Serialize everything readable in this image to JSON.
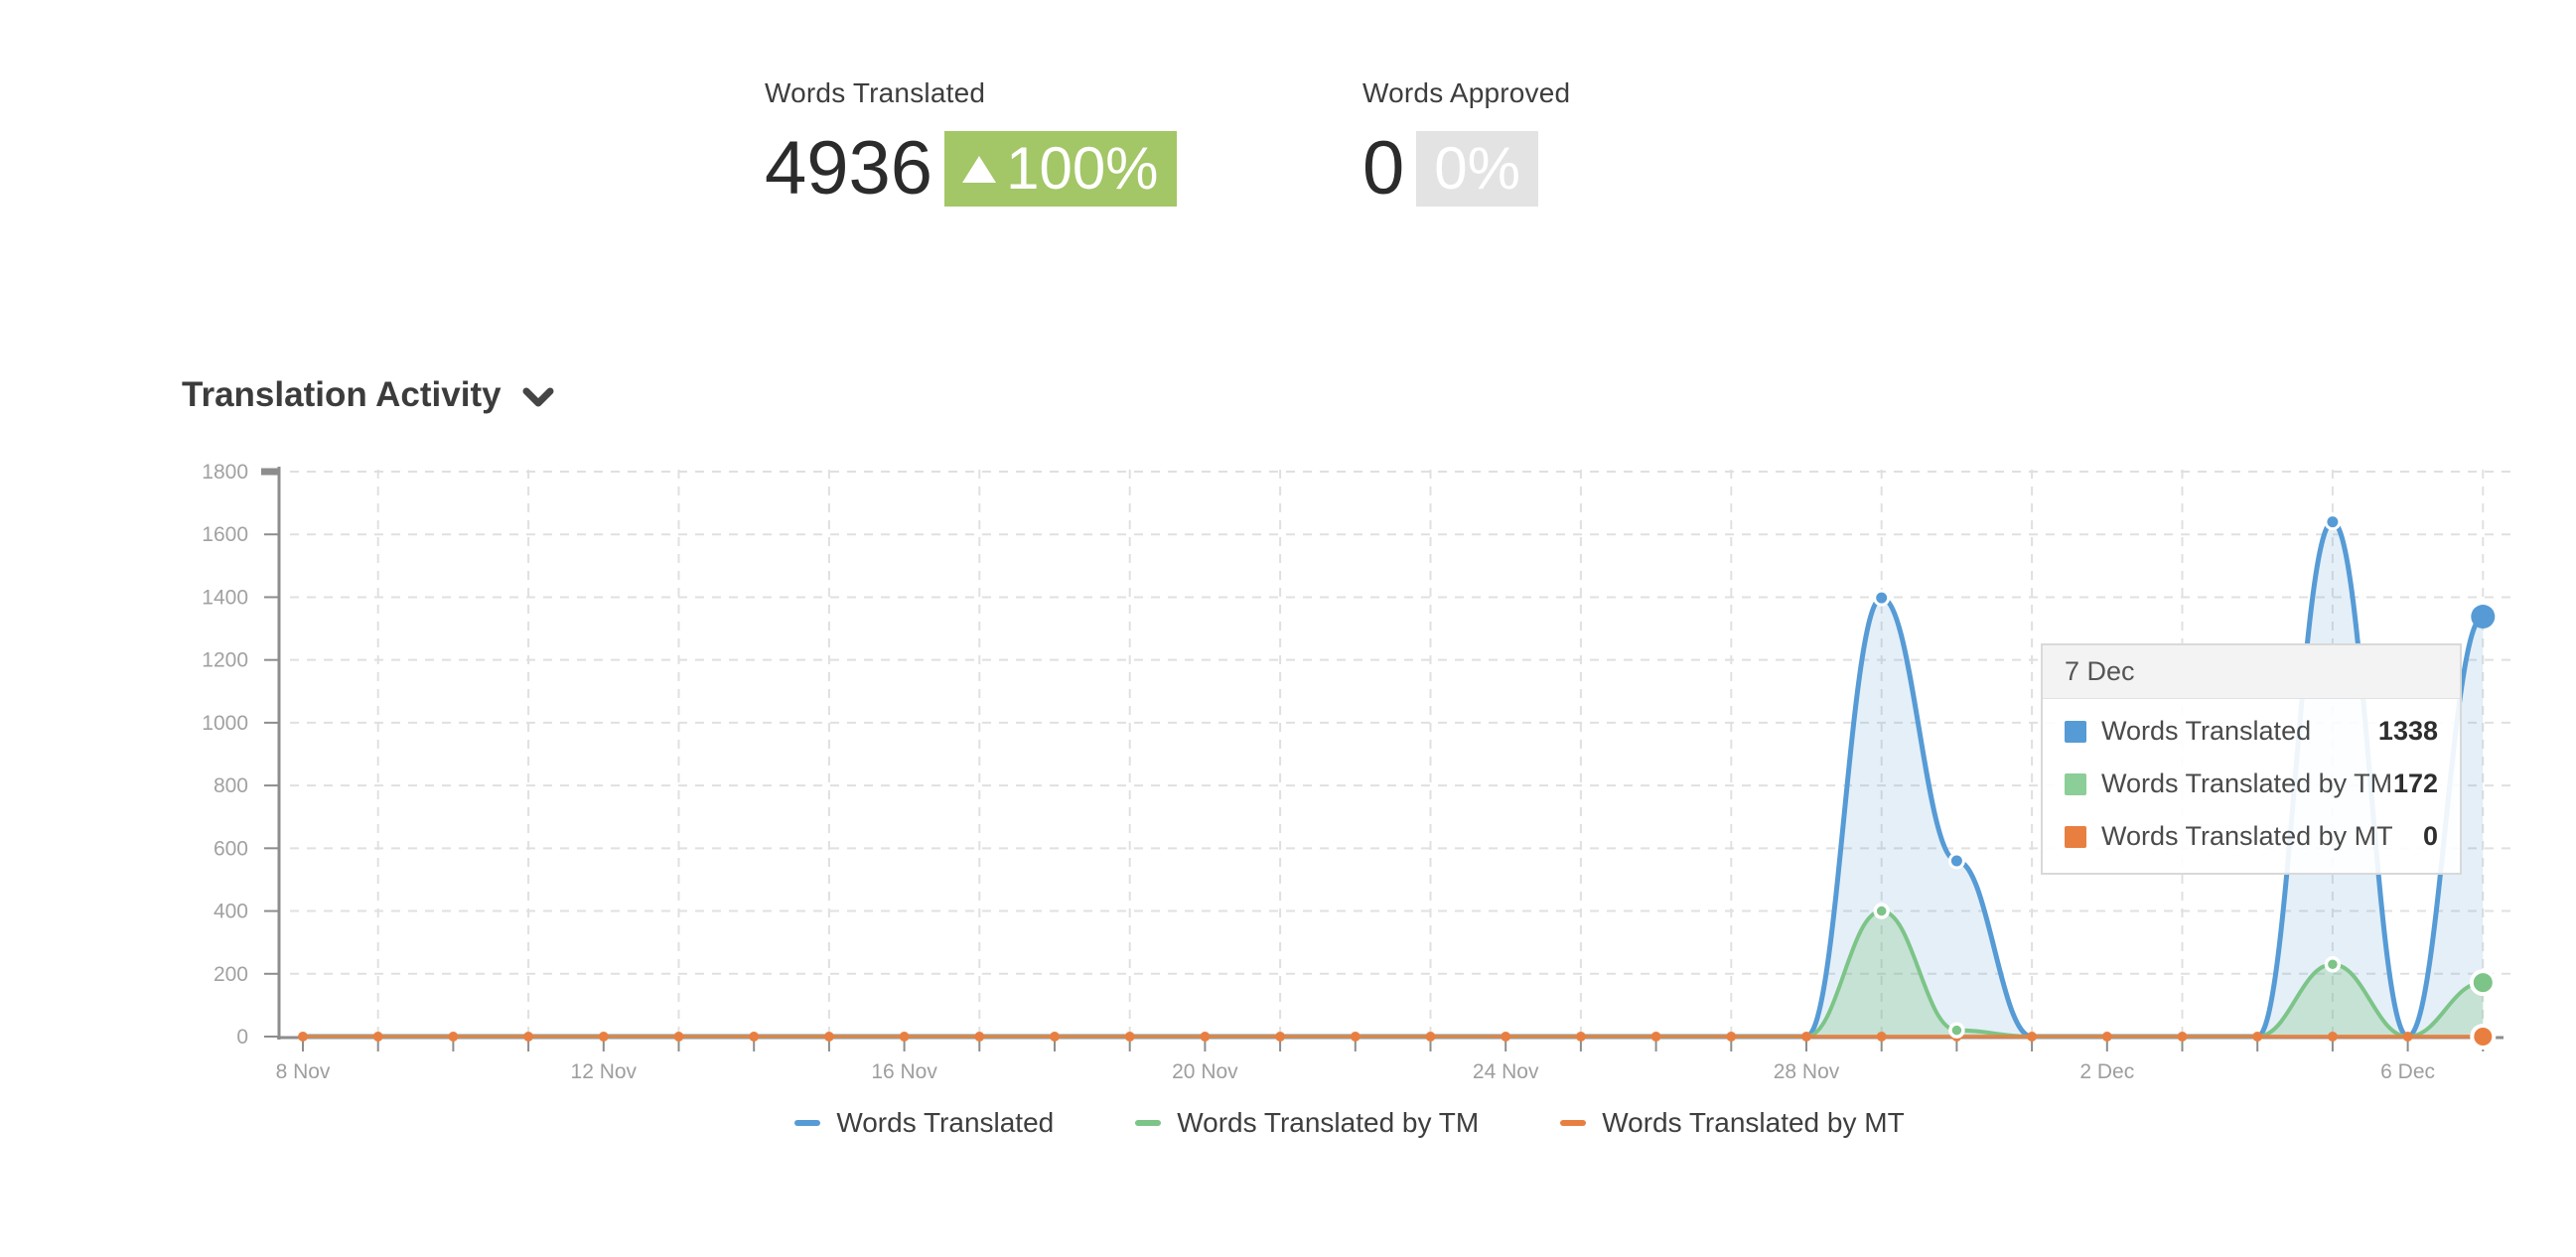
{
  "stats": [
    {
      "label": "Words Translated",
      "value": "4936",
      "delta": "100%",
      "delta_direction": "up",
      "badge_bg": "#a3c666"
    },
    {
      "label": "Words Approved",
      "value": "0",
      "delta": "0%",
      "delta_direction": "none",
      "badge_bg": "#e3e3e3"
    }
  ],
  "section": {
    "title": "Translation Activity",
    "collapse_icon": "chevron-down-icon"
  },
  "chart_data": {
    "type": "area",
    "title": "Translation Activity",
    "categories": [
      "8 Nov",
      "9 Nov",
      "10 Nov",
      "11 Nov",
      "12 Nov",
      "13 Nov",
      "14 Nov",
      "15 Nov",
      "16 Nov",
      "17 Nov",
      "18 Nov",
      "19 Nov",
      "20 Nov",
      "21 Nov",
      "22 Nov",
      "23 Nov",
      "24 Nov",
      "25 Nov",
      "26 Nov",
      "27 Nov",
      "28 Nov",
      "29 Nov",
      "30 Nov",
      "1 Dec",
      "2 Dec",
      "3 Dec",
      "4 Dec",
      "5 Dec",
      "6 Dec",
      "7 Dec"
    ],
    "x_label_every": 4,
    "x_labels_shown": [
      "8 Nov",
      "12 Nov",
      "16 Nov",
      "20 Nov",
      "24 Nov",
      "28 Nov",
      "2 Dec",
      "6 Dec"
    ],
    "ylim": [
      0,
      1800
    ],
    "ytick_step": 200,
    "grid": "dashed",
    "legend_position": "bottom",
    "highlight_index": 29,
    "highlight_label": "7 Dec",
    "series": [
      {
        "name": "Words Translated",
        "color": "#569bd5",
        "fill": "rgba(86,155,213,0.16)",
        "markers": "nonzero",
        "values": [
          0,
          0,
          0,
          0,
          0,
          0,
          0,
          0,
          0,
          0,
          0,
          0,
          0,
          0,
          0,
          0,
          0,
          0,
          0,
          0,
          0,
          1398,
          560,
          0,
          0,
          0,
          0,
          1640,
          0,
          1338
        ]
      },
      {
        "name": "Words Translated by TM",
        "color": "#7cc487",
        "fill": "rgba(125,196,134,0.30)",
        "markers": "nonzero",
        "values": [
          0,
          0,
          0,
          0,
          0,
          0,
          0,
          0,
          0,
          0,
          0,
          0,
          0,
          0,
          0,
          0,
          0,
          0,
          0,
          0,
          0,
          400,
          20,
          0,
          0,
          0,
          0,
          230,
          0,
          172
        ]
      },
      {
        "name": "Words Translated by MT",
        "color": "#e87f40",
        "fill": "rgba(232,127,64,0)",
        "markers": "all",
        "values": [
          0,
          0,
          0,
          0,
          0,
          0,
          0,
          0,
          0,
          0,
          0,
          0,
          0,
          0,
          0,
          0,
          0,
          0,
          0,
          0,
          0,
          0,
          0,
          0,
          0,
          0,
          0,
          0,
          0,
          0
        ]
      }
    ]
  },
  "tooltip": {
    "title": "7 Dec",
    "rows": [
      {
        "label": "Words Translated",
        "value": "1338",
        "color": "#569bd5"
      },
      {
        "label": "Words Translated by TM",
        "value": "172",
        "color": "#8cce97"
      },
      {
        "label": "Words Translated by MT",
        "value": "0",
        "color": "#e87f40"
      }
    ]
  },
  "colors": {
    "axis": "#8d8d8d",
    "grid": "#e0e0e0",
    "tick_label": "#a1a1a1"
  }
}
